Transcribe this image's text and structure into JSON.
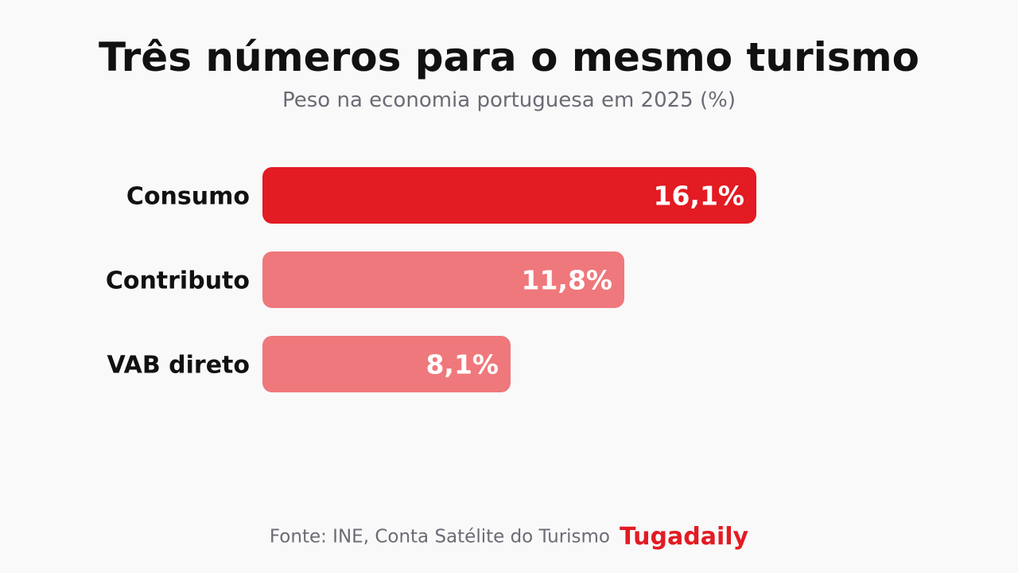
{
  "header": {
    "title": "Três números para o mesmo turismo",
    "subtitle": "Peso na economia portuguesa em 2025 (%)"
  },
  "footer": {
    "source": "Fonte: INE, Conta Satélite do Turismo",
    "brand": "Tugadaily"
  },
  "colors": {
    "primary": "#e31b23",
    "secondary": "#ef787c",
    "label": "#111111",
    "value_text": "#ffffff"
  },
  "chart_data": {
    "type": "bar",
    "orientation": "horizontal",
    "title": "Três números para o mesmo turismo",
    "subtitle": "Peso na economia portuguesa em 2025 (%)",
    "categories": [
      "Consumo",
      "Contributo",
      "VAB direto"
    ],
    "values": [
      16.1,
      11.8,
      8.1
    ],
    "value_labels": [
      "16,1%",
      "11,8%",
      "8,1%"
    ],
    "highlight_index": 0,
    "xlim": [
      0,
      16.1
    ],
    "grid": false,
    "legend": "none"
  }
}
